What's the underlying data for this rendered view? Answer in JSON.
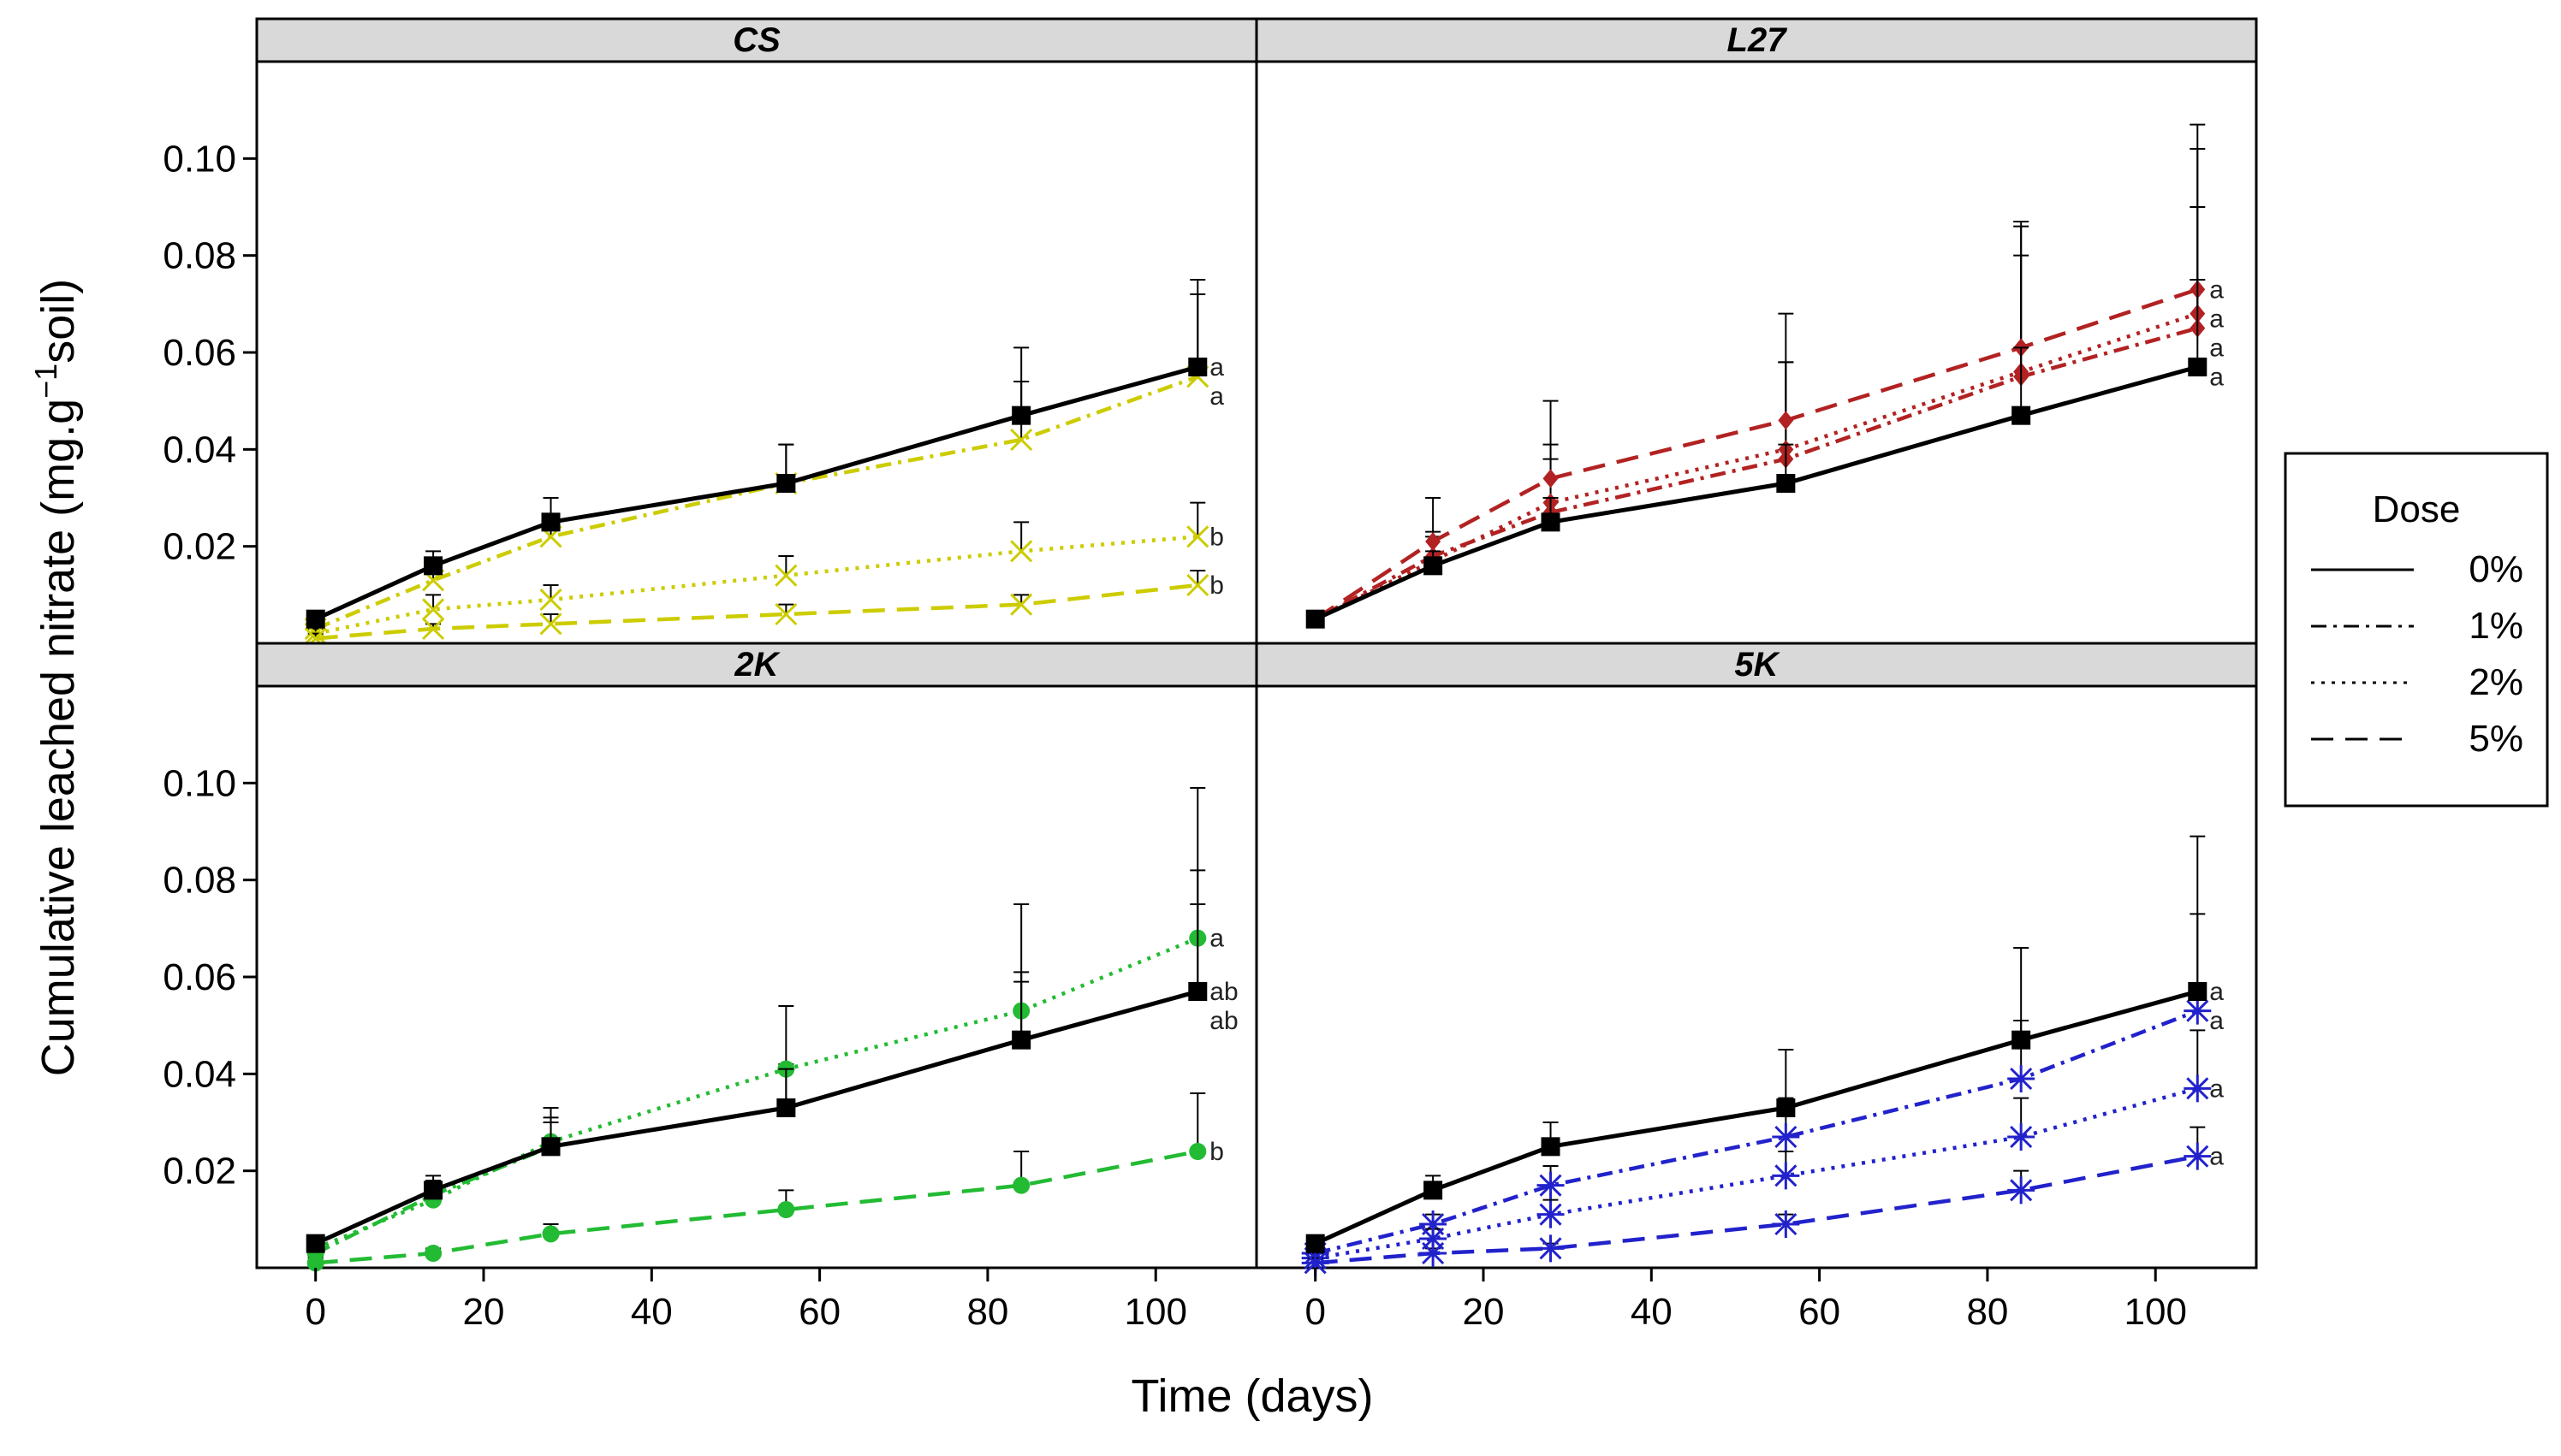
{
  "chart_data": {
    "type": "line",
    "ylabel_main": "Cumulative leached nitrate  (mg.g",
    "ylabel_sup": "−1",
    "ylabel_end": "soil)",
    "xlabel": "Time (days)",
    "x": [
      0,
      14,
      28,
      56,
      84,
      105
    ],
    "xlim": [
      -7,
      112
    ],
    "ylim": [
      0,
      0.12
    ],
    "xticks": [
      0,
      20,
      40,
      60,
      80,
      100
    ],
    "yticks": [
      0.02,
      0.04,
      0.06,
      0.08,
      0.1
    ],
    "ytick_labels": [
      "0.02",
      "0.04",
      "0.06",
      "0.08",
      "0.10"
    ],
    "legend": {
      "title": "Dose",
      "entries": [
        {
          "label": "0%",
          "dash": "solid"
        },
        {
          "label": "1%",
          "dash": "dashdot"
        },
        {
          "label": "2%",
          "dash": "dotted"
        },
        {
          "label": "5%",
          "dash": "dashed"
        }
      ]
    },
    "panels": [
      {
        "name": "CS",
        "color": "#cccc00",
        "marker": "x",
        "series": [
          {
            "dose": "0%",
            "values": [
              0.005,
              0.016,
              0.025,
              0.033,
              0.047,
              0.057
            ],
            "errors": [
              0.001,
              0.003,
              0.005,
              0.008,
              0.014,
              0.018
            ],
            "sig": "a"
          },
          {
            "dose": "1%",
            "values": [
              0.003,
              0.013,
              0.022,
              0.033,
              0.042,
              0.055
            ],
            "errors": [
              0.001,
              0.003,
              0.004,
              0.008,
              0.012,
              0.017
            ],
            "sig": "a"
          },
          {
            "dose": "2%",
            "values": [
              0.002,
              0.007,
              0.009,
              0.014,
              0.019,
              0.022
            ],
            "errors": [
              0.001,
              0.003,
              0.003,
              0.004,
              0.006,
              0.007
            ],
            "sig": "b"
          },
          {
            "dose": "5%",
            "values": [
              0.001,
              0.003,
              0.004,
              0.006,
              0.008,
              0.012
            ],
            "errors": [
              0.001,
              0.001,
              0.002,
              0.002,
              0.002,
              0.003
            ],
            "sig": "b"
          }
        ]
      },
      {
        "name": "L27",
        "color": "#b22222",
        "marker": "diamond",
        "series": [
          {
            "dose": "0%",
            "values": [
              0.005,
              0.016,
              0.025,
              0.033,
              0.047,
              0.057
            ],
            "errors": [
              0.001,
              0.003,
              0.005,
              0.008,
              0.014,
              0.018
            ],
            "sig": "a"
          },
          {
            "dose": "1%",
            "values": [
              0.005,
              0.018,
              0.027,
              0.038,
              0.055,
              0.065
            ],
            "errors": [
              0.001,
              0.004,
              0.011,
              0.02,
              0.025,
              0.025
            ],
            "sig": "a"
          },
          {
            "dose": "2%",
            "values": [
              0.005,
              0.017,
              0.029,
              0.04,
              0.056,
              0.068
            ],
            "errors": [
              0.001,
              0.006,
              0.012,
              0.018,
              0.03,
              0.034
            ],
            "sig": "a"
          },
          {
            "dose": "5%",
            "values": [
              0.005,
              0.021,
              0.034,
              0.046,
              0.061,
              0.073
            ],
            "errors": [
              0.001,
              0.009,
              0.016,
              0.022,
              0.026,
              0.034
            ],
            "sig": "a"
          }
        ]
      },
      {
        "name": "2K",
        "color": "#22bb33",
        "marker": "circle",
        "series": [
          {
            "dose": "0%",
            "values": [
              0.005,
              0.016,
              0.025,
              0.033,
              0.047,
              0.057
            ],
            "errors": [
              0.001,
              0.003,
              0.005,
              0.008,
              0.014,
              0.018
            ],
            "sig": "ab"
          },
          {
            "dose": "1%",
            "values": [
              0.003,
              0.015,
              0.025,
              0.033,
              0.047,
              0.057
            ],
            "errors": [
              0.001,
              0.003,
              0.006,
              0.009,
              0.012,
              0.025
            ],
            "sig": "ab"
          },
          {
            "dose": "2%",
            "values": [
              0.004,
              0.014,
              0.026,
              0.041,
              0.053,
              0.068
            ],
            "errors": [
              0.001,
              0.003,
              0.007,
              0.013,
              0.022,
              0.031
            ],
            "sig": "a"
          },
          {
            "dose": "5%",
            "values": [
              0.001,
              0.003,
              0.007,
              0.012,
              0.017,
              0.024
            ],
            "errors": [
              0.001,
              0.001,
              0.002,
              0.004,
              0.007,
              0.012
            ],
            "sig": "b"
          }
        ]
      },
      {
        "name": "5K",
        "color": "#2222cc",
        "marker": "asterisk",
        "series": [
          {
            "dose": "0%",
            "values": [
              0.005,
              0.016,
              0.025,
              0.033,
              0.047,
              0.057
            ],
            "errors": [
              0.001,
              0.003,
              0.005,
              0.012,
              0.019,
              0.032
            ],
            "sig": "a"
          },
          {
            "dose": "1%",
            "values": [
              0.003,
              0.009,
              0.017,
              0.027,
              0.039,
              0.053
            ],
            "errors": [
              0.001,
              0.002,
              0.004,
              0.008,
              0.012,
              0.02
            ],
            "sig": "a"
          },
          {
            "dose": "2%",
            "values": [
              0.002,
              0.006,
              0.011,
              0.019,
              0.027,
              0.037
            ],
            "errors": [
              0.001,
              0.002,
              0.003,
              0.005,
              0.008,
              0.012
            ],
            "sig": "a"
          },
          {
            "dose": "5%",
            "values": [
              0.001,
              0.003,
              0.004,
              0.009,
              0.016,
              0.023
            ],
            "errors": [
              0.001,
              0.001,
              0.001,
              0.002,
              0.004,
              0.006
            ],
            "sig": "a"
          }
        ]
      }
    ]
  }
}
